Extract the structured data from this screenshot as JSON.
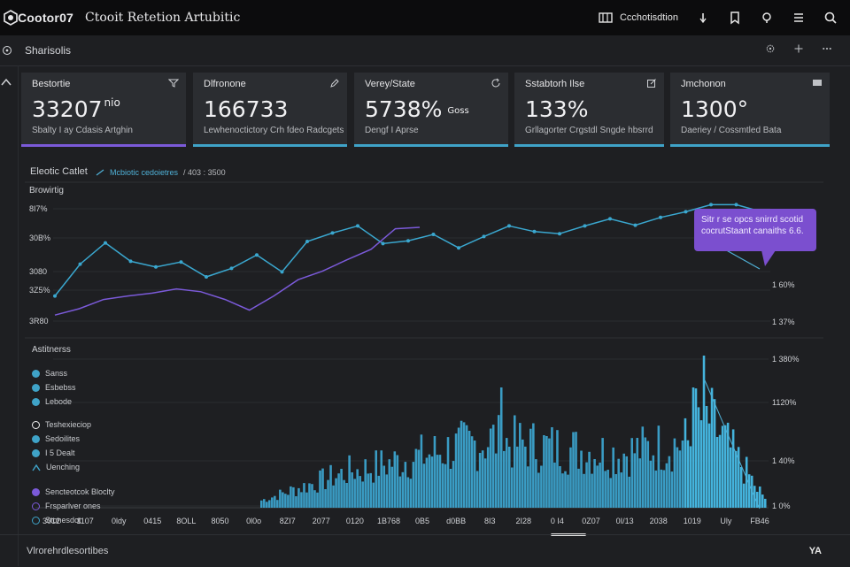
{
  "app": {
    "brand": "Cootor07",
    "title": "Ctooit Retetion Artubitic",
    "user_label": "Ccchotisdtion"
  },
  "subbar": {
    "title": "Sharisolis"
  },
  "cards": [
    {
      "label": "Bestortie",
      "value": "33207",
      "suffix": "nio",
      "sub": "Sbalty I ay Cdasis Artghin",
      "accent": "#7b5ad9",
      "icon": "filter-icon"
    },
    {
      "label": "Dlfronone",
      "value": "166733",
      "suffix": "",
      "sub": "Lewhenoctictory Crh fdeo Radcgets",
      "accent": "#3fa3c8",
      "icon": "edit-icon"
    },
    {
      "label": "Verey/State",
      "value": "5738%",
      "suffix": "Goss",
      "sub": "Dengf I Aprse",
      "accent": "#3fa3c8",
      "icon": "refresh-icon"
    },
    {
      "label": "Sstabtorh Ilse",
      "value": "133%",
      "suffix": "",
      "sub": "Grllagorter Crgstdl Sngde hbsrrd",
      "accent": "#3fa3c8",
      "icon": "external-icon"
    },
    {
      "label": "Jmchonon",
      "value": "1300°",
      "suffix": "",
      "sub": "Daeriey / Cossmtled Bata",
      "accent": "#3fa3c8",
      "icon": "message-icon"
    }
  ],
  "chart": {
    "head": "Eleotic Catlet",
    "legend_a": "Mcbiotic cedoietres",
    "legend_b": "/ 403 : 3500",
    "section_label": "Browirtig"
  },
  "chart_data": {
    "type": "line",
    "y_ticks": [
      "8I7%",
      "30B%",
      "3080",
      "3Z5%",
      "3R80"
    ],
    "series": [
      {
        "values": [
          63,
          108,
          138,
          112,
          104,
          111,
          90,
          102,
          121,
          97,
          140,
          152,
          162,
          137,
          141,
          150,
          131,
          147,
          162,
          154,
          151,
          162,
          172,
          163,
          174,
          182,
          192,
          192,
          182
        ]
      },
      {
        "values": [
          36,
          45,
          58,
          63,
          67,
          73,
          69,
          58,
          43,
          63,
          86,
          98,
          114,
          129,
          158,
          160
        ]
      }
    ],
    "tooltip": {
      "line1": "Sitr r se opcs snirrd scotid",
      "line2": "cocrutStaant canaiths 6.6."
    }
  },
  "bottom_chart": {
    "title": "Astitnerss",
    "right_ticks": [
      "1 380%",
      "1120%",
      "1 40%",
      "1 0%"
    ],
    "top_right_label": "1 60%",
    "mid_right_label": "1 37%",
    "x_ticks": [
      "3012",
      "1107",
      "0ldy",
      "0415",
      "8OLL",
      "8050",
      "0l0o",
      "8ZI7",
      "2077",
      "0120",
      "1B768",
      "0B5",
      "d0BB",
      "8I3",
      "2I28",
      "0 I4",
      "0Z07",
      "0I/13",
      "2038",
      "1019",
      "Uly",
      "FB46"
    ],
    "legend": [
      {
        "label": "Sanss",
        "color": "#3fa3c8",
        "icon": "dot"
      },
      {
        "label": "Esbebss",
        "color": "#3fa3c8",
        "icon": "dot"
      },
      {
        "label": "Lebode",
        "color": "#3fa3c8",
        "icon": "dot"
      },
      {
        "label": "Teshexieciop",
        "color": "#f1f1f1",
        "icon": "info"
      },
      {
        "label": "Sedoilites",
        "color": "#3fa3c8",
        "icon": "dot"
      },
      {
        "label": "I 5 Dealt",
        "color": "#3fa3c8",
        "icon": "dot"
      },
      {
        "label": "Uenching",
        "color": "#3fa3c8",
        "icon": "chevron"
      },
      {
        "label": "Sencteotcok Bloclty",
        "color": "#7b5ad9",
        "icon": "dot"
      },
      {
        "label": "Frsparlver ones",
        "color": "#7b5ad9",
        "icon": "clock"
      },
      {
        "label": "Stonesdot",
        "color": "#3fa3c8",
        "icon": "clock"
      }
    ]
  },
  "footer": {
    "left": "Vlrorehrdlesortibes",
    "right": "YA"
  }
}
